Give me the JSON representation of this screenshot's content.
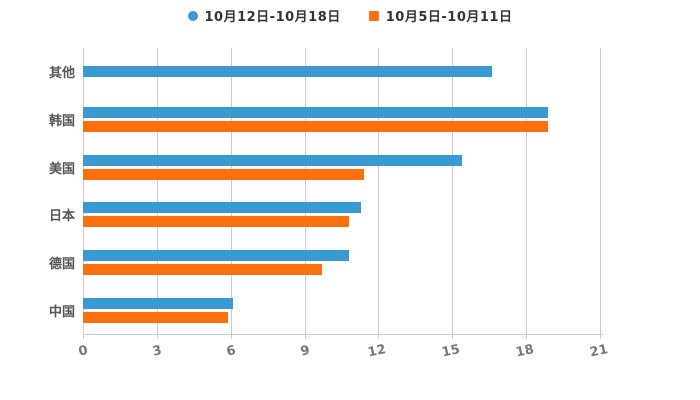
{
  "legend": {
    "items": [
      {
        "label": "10月12日-10月18日",
        "color": "#3899D3",
        "marker": "circle"
      },
      {
        "label": "10月5日-10月11日",
        "color": "#FF6F0E",
        "marker": "square"
      }
    ]
  },
  "colors": {
    "series1": "#3899D3",
    "series2": "#FF6F0E",
    "gridline": "#cccccc",
    "tick_label": "#777777",
    "category_label": "#555555",
    "legend_text": "#333333"
  },
  "chart_data": {
    "type": "bar",
    "orientation": "horizontal",
    "title": "",
    "xlabel": "",
    "ylabel": "",
    "categories": [
      "其他",
      "韩国",
      "美国",
      "日本",
      "德国",
      "中国"
    ],
    "series": [
      {
        "name": "10月12日-10月18日",
        "color": "#3899D3",
        "values": [
          16.6,
          18.9,
          15.4,
          11.3,
          10.8,
          6.1
        ]
      },
      {
        "name": "10月5日-10月11日",
        "color": "#FF6F0E",
        "values": [
          null,
          18.9,
          11.4,
          10.8,
          9.7,
          5.9
        ]
      }
    ],
    "xlim": [
      0,
      21
    ],
    "ticks": [
      "0",
      "3",
      "6",
      "9",
      "12",
      "15",
      "18",
      "21"
    ],
    "grid": true,
    "legend_position": "top"
  }
}
